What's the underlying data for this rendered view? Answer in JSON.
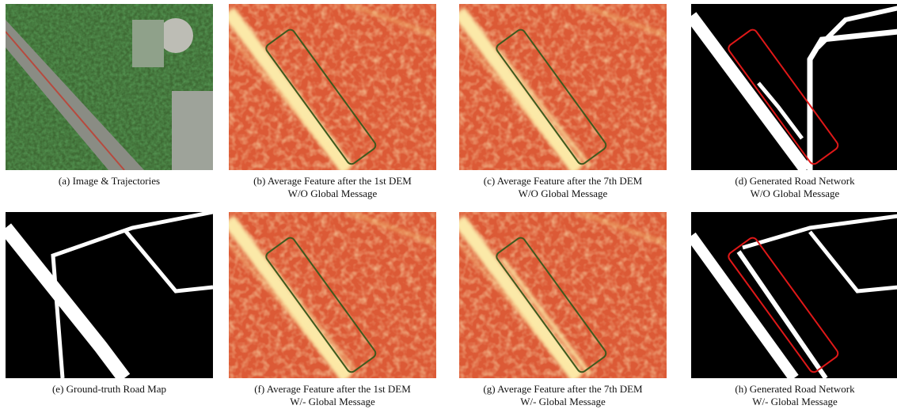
{
  "panels": [
    {
      "caption": [
        "(a) Image & Trajectories"
      ]
    },
    {
      "caption": [
        "(b) Average Feature after the 1st DEM",
        "W/O Global Message"
      ]
    },
    {
      "caption": [
        "(c) Average Feature after the 7th DEM",
        "W/O Global Message"
      ]
    },
    {
      "caption": [
        "(d) Generated Road Network",
        "W/O Global Message"
      ]
    },
    {
      "caption": [
        "(e) Ground-truth Road Map"
      ]
    },
    {
      "caption": [
        "(f) Average Feature after the 1st DEM",
        "W/- Global Message"
      ]
    },
    {
      "caption": [
        "(g) Average Feature after the 7th DEM",
        "W/- Global Message"
      ]
    },
    {
      "caption": [
        "(h) Generated Road Network",
        "W/- Global Message"
      ]
    }
  ]
}
